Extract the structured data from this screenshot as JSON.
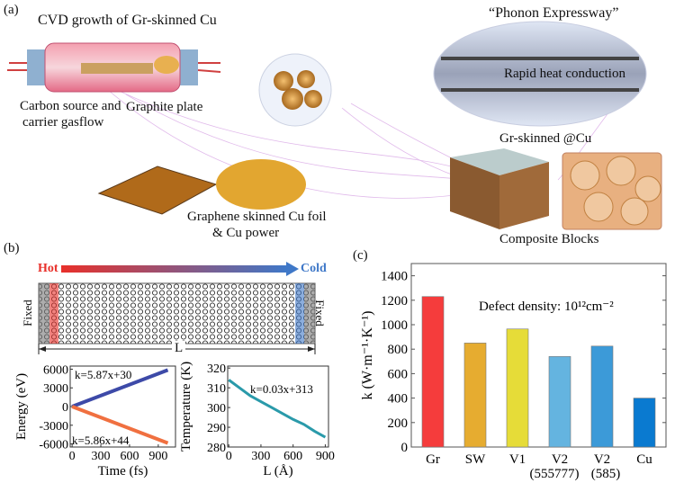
{
  "panel_a": {
    "label": "(a)",
    "cvd_title": "CVD growth of Gr-skinned Cu",
    "carbon_source": [
      "Carbon source and",
      "carrier gasflow"
    ],
    "graphite_plate": "Graphite plate",
    "foil_powder": [
      "Graphene skinned Cu foil",
      "& Cu power"
    ],
    "phonon_title": "“Phonon Expressway”",
    "rapid_heat": "Rapid heat conduction",
    "gr_skinned": "Gr-skinned @Cu",
    "composite": "Composite Blocks"
  },
  "panel_b": {
    "label": "(b)",
    "hot": "Hot",
    "cold": "Cold",
    "fixed": "Fixed",
    "length": "L",
    "colors": {
      "hot": "#e8302a",
      "cold": "#3f78c8"
    }
  },
  "panel_c": {
    "label": "(c)"
  },
  "chart_data": [
    {
      "type": "line",
      "xlabel": "Time (fs)",
      "ylabel": "Energy (eV)",
      "xticks": [
        0,
        300,
        600,
        900
      ],
      "yticks": [
        6000,
        3000,
        0,
        -3000,
        -6000
      ],
      "xlim": [
        -20,
        1080
      ],
      "ylim": [
        -6500,
        6500
      ],
      "series": [
        {
          "color": "#3d4aa8",
          "slope": 5.87,
          "intercept": 30,
          "x": [
            0,
            1000
          ],
          "annotation": "k=5.87x+30"
        },
        {
          "color": "#f07040",
          "slope": -5.86,
          "intercept": 44,
          "x": [
            0,
            1000
          ],
          "annotation": "k=5.86x+44"
        }
      ]
    },
    {
      "type": "line",
      "xlabel": "L (Å)",
      "ylabel": "Temperature (K)",
      "xticks": [
        0,
        300,
        600,
        900
      ],
      "yticks": [
        320,
        310,
        300,
        290,
        280
      ],
      "xlim": [
        -10,
        930
      ],
      "ylim": [
        280,
        321
      ],
      "series": [
        {
          "color": "#2a9aaa",
          "x": [
            0,
            100,
            200,
            300,
            400,
            500,
            600,
            700,
            800,
            900
          ],
          "y": [
            314,
            310,
            306,
            303,
            300,
            297,
            294,
            291.5,
            288,
            285
          ],
          "annotation": "k=0.03x+313"
        }
      ]
    },
    {
      "type": "bar",
      "ylabel": "k (W·m⁻¹·K⁻¹)",
      "annotation": "Defect density: 10¹²cm⁻²",
      "categories": [
        "Gr",
        "SW",
        "V1",
        "V2\n(555777)",
        "V2\n(585)",
        "Cu"
      ],
      "category_lines": [
        [
          "Gr"
        ],
        [
          "SW"
        ],
        [
          "V1"
        ],
        [
          "V2",
          "(555777)"
        ],
        [
          "V2",
          "(585)"
        ],
        [
          "Cu"
        ]
      ],
      "values": [
        1230,
        850,
        965,
        740,
        825,
        400
      ],
      "colors": [
        "#f53c3c",
        "#e6ac30",
        "#e6dc38",
        "#64b4e0",
        "#3c9ad8",
        "#0a7ad0"
      ],
      "yticks": [
        0,
        200,
        400,
        600,
        800,
        1000,
        1200,
        1400
      ],
      "ylim": [
        0,
        1500
      ],
      "grid": false
    }
  ]
}
